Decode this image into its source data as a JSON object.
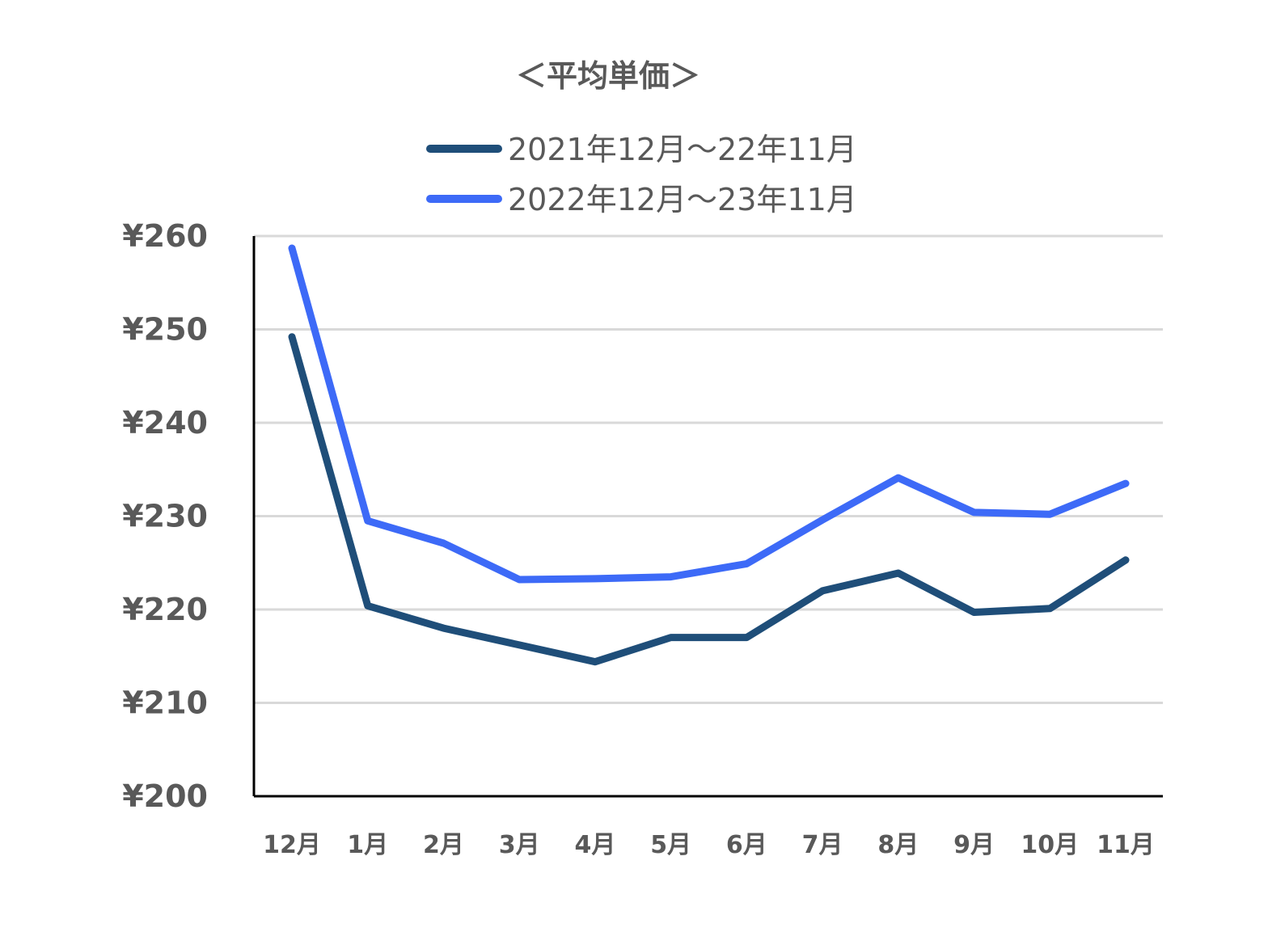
{
  "chart_data": {
    "type": "line",
    "title": "＜平均単価＞",
    "xlabel": "",
    "ylabel": "",
    "categories": [
      "12月",
      "1月",
      "2月",
      "3月",
      "4月",
      "5月",
      "6月",
      "7月",
      "8月",
      "9月",
      "10月",
      "11月"
    ],
    "ylim": [
      200,
      260
    ],
    "yticks": [
      200,
      210,
      220,
      230,
      240,
      250,
      260
    ],
    "ytick_labels": [
      "¥200",
      "¥210",
      "¥220",
      "¥230",
      "¥240",
      "¥250",
      "¥260"
    ],
    "grid": true,
    "legend": "top",
    "series": [
      {
        "name": "2021年12月～22年11月",
        "color": "#1f4e79",
        "values": [
          249.2,
          220.4,
          218.0,
          216.2,
          214.4,
          217.0,
          217.0,
          222.0,
          223.9,
          219.7,
          220.1,
          225.3
        ]
      },
      {
        "name": "2022年12月～23年11月",
        "color": "#3d6af7",
        "values": [
          258.7,
          229.5,
          227.1,
          223.2,
          223.3,
          223.5,
          224.9,
          229.6,
          234.1,
          230.4,
          230.2,
          233.5
        ]
      }
    ]
  }
}
